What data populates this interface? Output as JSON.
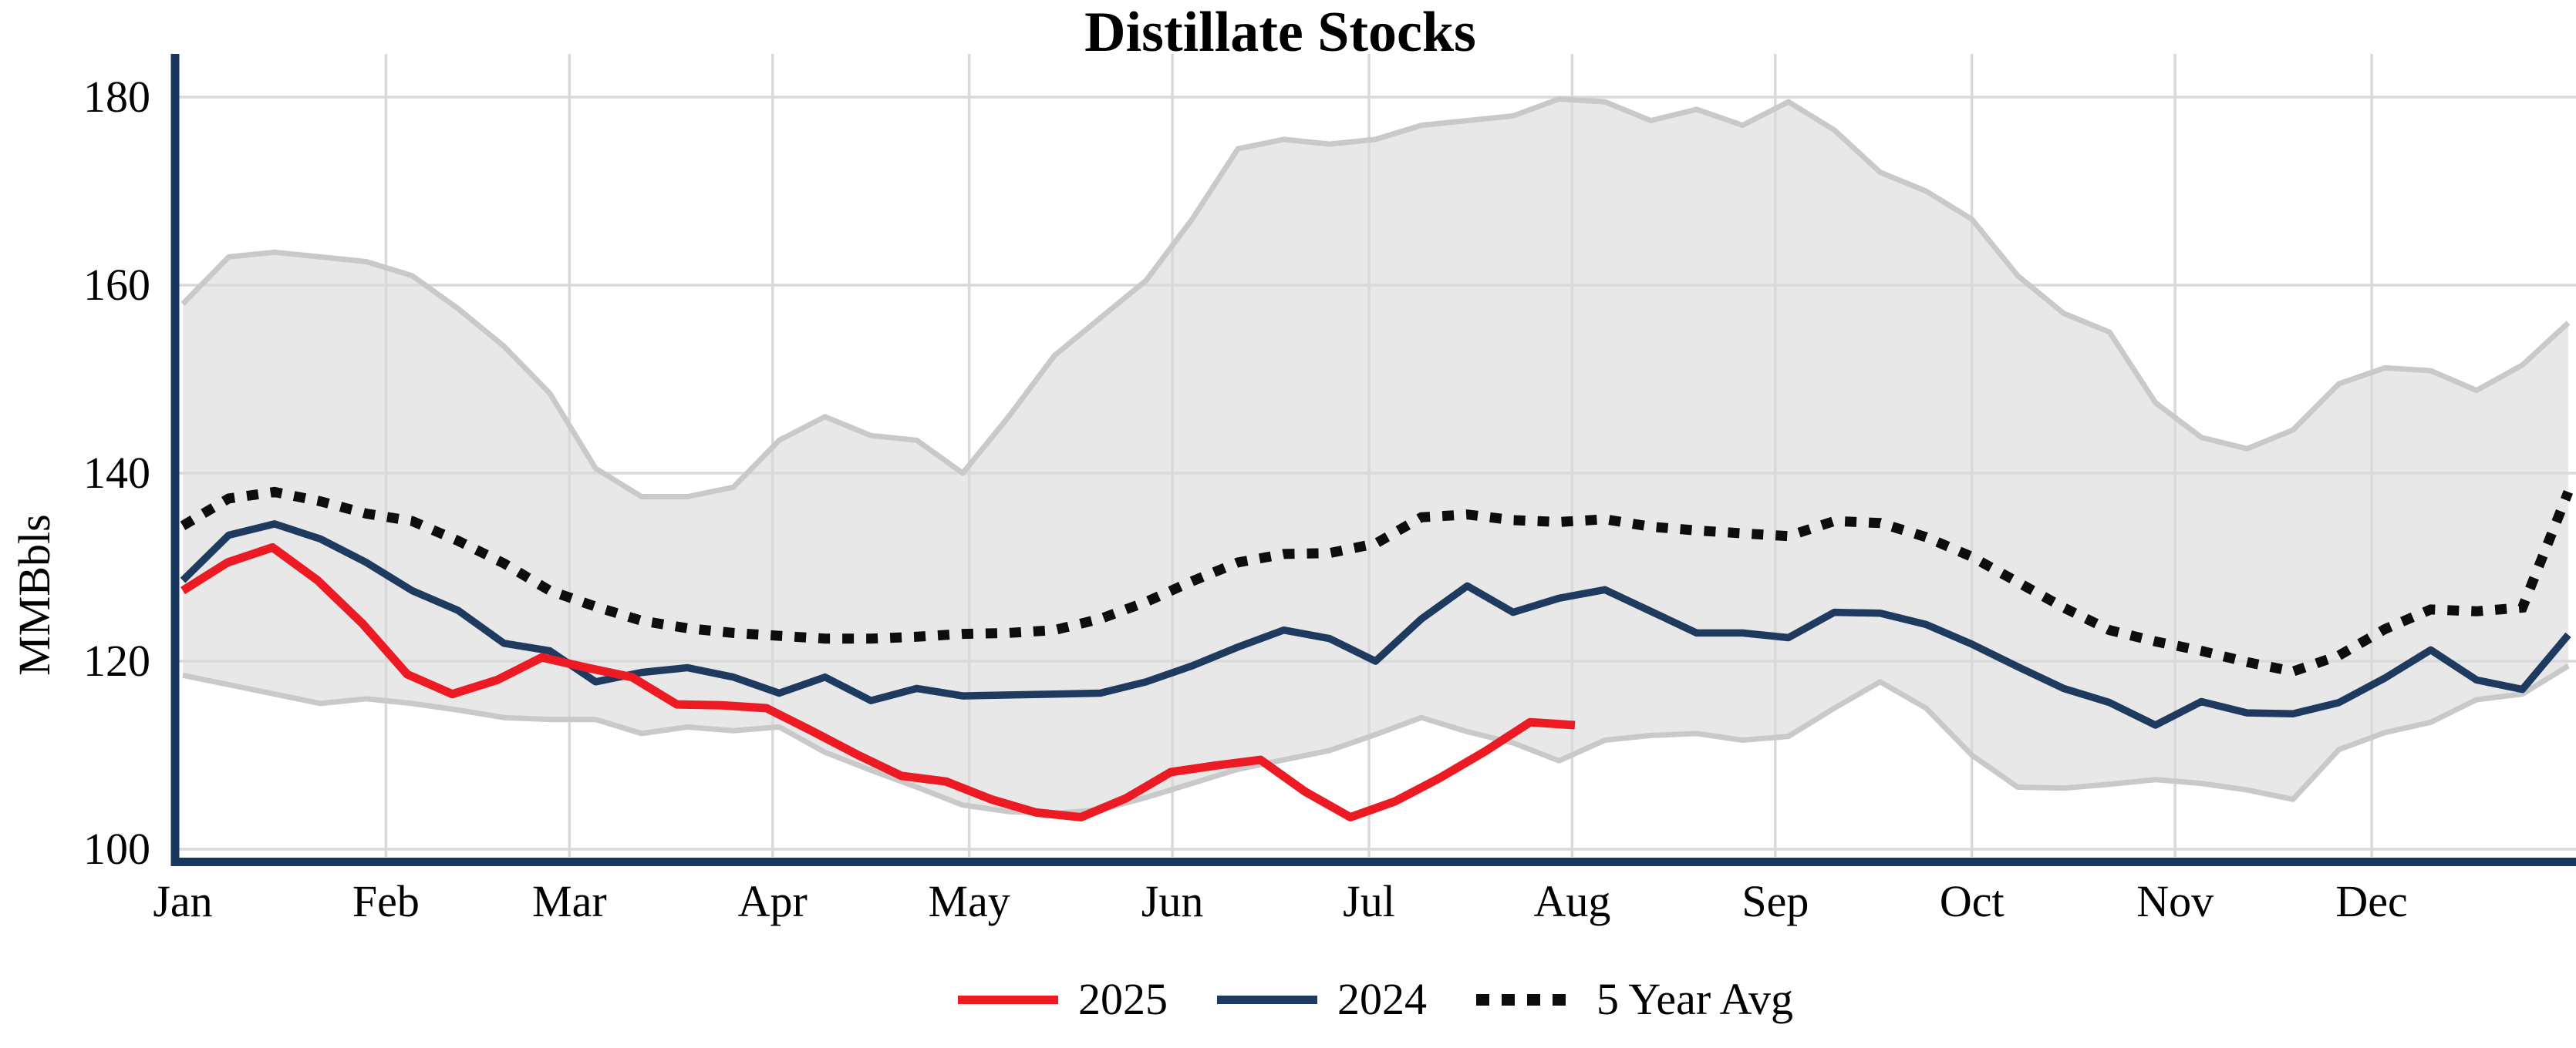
{
  "title": "Distillate Stocks",
  "y_axis": {
    "label": "MMBbls",
    "ticks": [
      180,
      160,
      140,
      120,
      100
    ]
  },
  "x_axis": {
    "months": [
      "Jan",
      "Feb",
      "Mar",
      "Apr",
      "May",
      "Jun",
      "Jul",
      "Aug",
      "Sep",
      "Oct",
      "Nov",
      "Dec"
    ]
  },
  "legend": [
    {
      "label": "2025",
      "style": "solid",
      "color": "#EC1B23"
    },
    {
      "label": "2024",
      "style": "solid",
      "color": "#1F3A5F"
    },
    {
      "label": "5 Year Avg",
      "style": "dotted",
      "color": "#0D0D0D"
    }
  ],
  "colors": {
    "red_2025": "#EC1B23",
    "navy_2024": "#1F3A5F",
    "avg_dotted": "#0D0D0D",
    "band_fill": "#E8E8E8",
    "band_edge": "#C9C9C9",
    "gridline": "#D9D9D9",
    "axis_spine": "#17375E",
    "text": "#000000"
  },
  "chart_data": {
    "type": "line",
    "title": "Distillate Stocks",
    "xlabel": "",
    "ylabel": "MMBbls",
    "ylim": [
      98,
      184
    ],
    "grid": true,
    "legend_position": "bottom center",
    "x_unit": "week of year (Jan-Dec)",
    "categories_months": [
      "Jan",
      "Feb",
      "Mar",
      "Apr",
      "May",
      "Jun",
      "Jul",
      "Aug",
      "Sep",
      "Oct",
      "Nov",
      "Dec"
    ],
    "series": [
      {
        "name": "5yr_range_upper",
        "role": "band-upper",
        "values": [
          158,
          163,
          163.5,
          163,
          162.5,
          161,
          157.5,
          153.5,
          148.5,
          140.5,
          137.5,
          137.5,
          138.5,
          143.5,
          146,
          144,
          143.5,
          140,
          146,
          152.5,
          156.5,
          160.5,
          167,
          174.5,
          175.5,
          175,
          175.5,
          177,
          177.5,
          178,
          179.8,
          179.5,
          177.5,
          178.7,
          177,
          179.5,
          176.5,
          172,
          170,
          167,
          161,
          157,
          155,
          147.5,
          143.8,
          142.6,
          144.6,
          149.5,
          151.2,
          150.9,
          148.8,
          151.5,
          156
        ]
      },
      {
        "name": "5yr_range_lower",
        "role": "band-lower",
        "values": [
          118.5,
          117.5,
          116.5,
          115.5,
          116,
          115.5,
          114.8,
          114,
          113.8,
          113.8,
          112.3,
          113,
          112.6,
          113,
          110.3,
          108.4,
          106.6,
          104.7,
          104,
          103.8,
          104.2,
          105.5,
          107,
          108.5,
          109.5,
          110.5,
          112.2,
          114,
          112.5,
          111.3,
          109.4,
          111.6,
          112.1,
          112.3,
          111.6,
          112,
          115,
          117.8,
          115,
          110,
          106.6,
          106.5,
          106.9,
          107.4,
          107,
          106.3,
          105.3,
          110.6,
          112.4,
          113.5,
          115.9,
          116.5,
          119.5
        ]
      },
      {
        "name": "5 Year Avg",
        "role": "dotted-line",
        "values": [
          134.4,
          137.3,
          138,
          137,
          135.7,
          134.9,
          132.8,
          130.4,
          127.5,
          125.8,
          124.3,
          123.5,
          123,
          122.7,
          122.4,
          122.4,
          122.6,
          122.9,
          123,
          123.3,
          124.5,
          126.3,
          128.5,
          130.5,
          131.4,
          131.5,
          132.5,
          135.3,
          135.6,
          135,
          134.8,
          135.1,
          134.3,
          133.9,
          133.6,
          133.3,
          134.9,
          134.7,
          133.2,
          131.1,
          128.4,
          125.7,
          123.3,
          122.1,
          121.1,
          119.9,
          118.9,
          120.6,
          123.4,
          125.5,
          125.3,
          125.7,
          138
        ]
      },
      {
        "name": "2024",
        "role": "solid-line",
        "values": [
          128.6,
          133.4,
          134.6,
          133,
          130.5,
          127.5,
          125.4,
          121.9,
          121.1,
          117.8,
          118.8,
          119.3,
          118.3,
          116.6,
          118.3,
          115.8,
          117.1,
          116.3,
          116.4,
          116.5,
          116.6,
          117.8,
          119.5,
          121.5,
          123.3,
          122.4,
          120,
          124.5,
          128,
          125.2,
          126.7,
          127.6,
          125.3,
          123,
          123,
          122.5,
          125.2,
          125.1,
          123.9,
          121.8,
          119.4,
          117.1,
          115.6,
          113.2,
          115.7,
          114.5,
          114.4,
          115.6,
          118.2,
          121.2,
          118,
          117,
          122.8
        ]
      },
      {
        "name": "2025",
        "role": "solid-line",
        "note": "data ends late July",
        "values": [
          127.5,
          130.5,
          132.1,
          128.6,
          124,
          118.6,
          116.5,
          118,
          120.4,
          119.3,
          118.3,
          115.4,
          115.3,
          115,
          112.6,
          110.1,
          107.8,
          107.2,
          105.3,
          103.9,
          103.4,
          105.4,
          108.2,
          108.9,
          109.5,
          106.1,
          103.4,
          105.1,
          107.6,
          110.4,
          113.5,
          113.2
        ]
      }
    ]
  }
}
